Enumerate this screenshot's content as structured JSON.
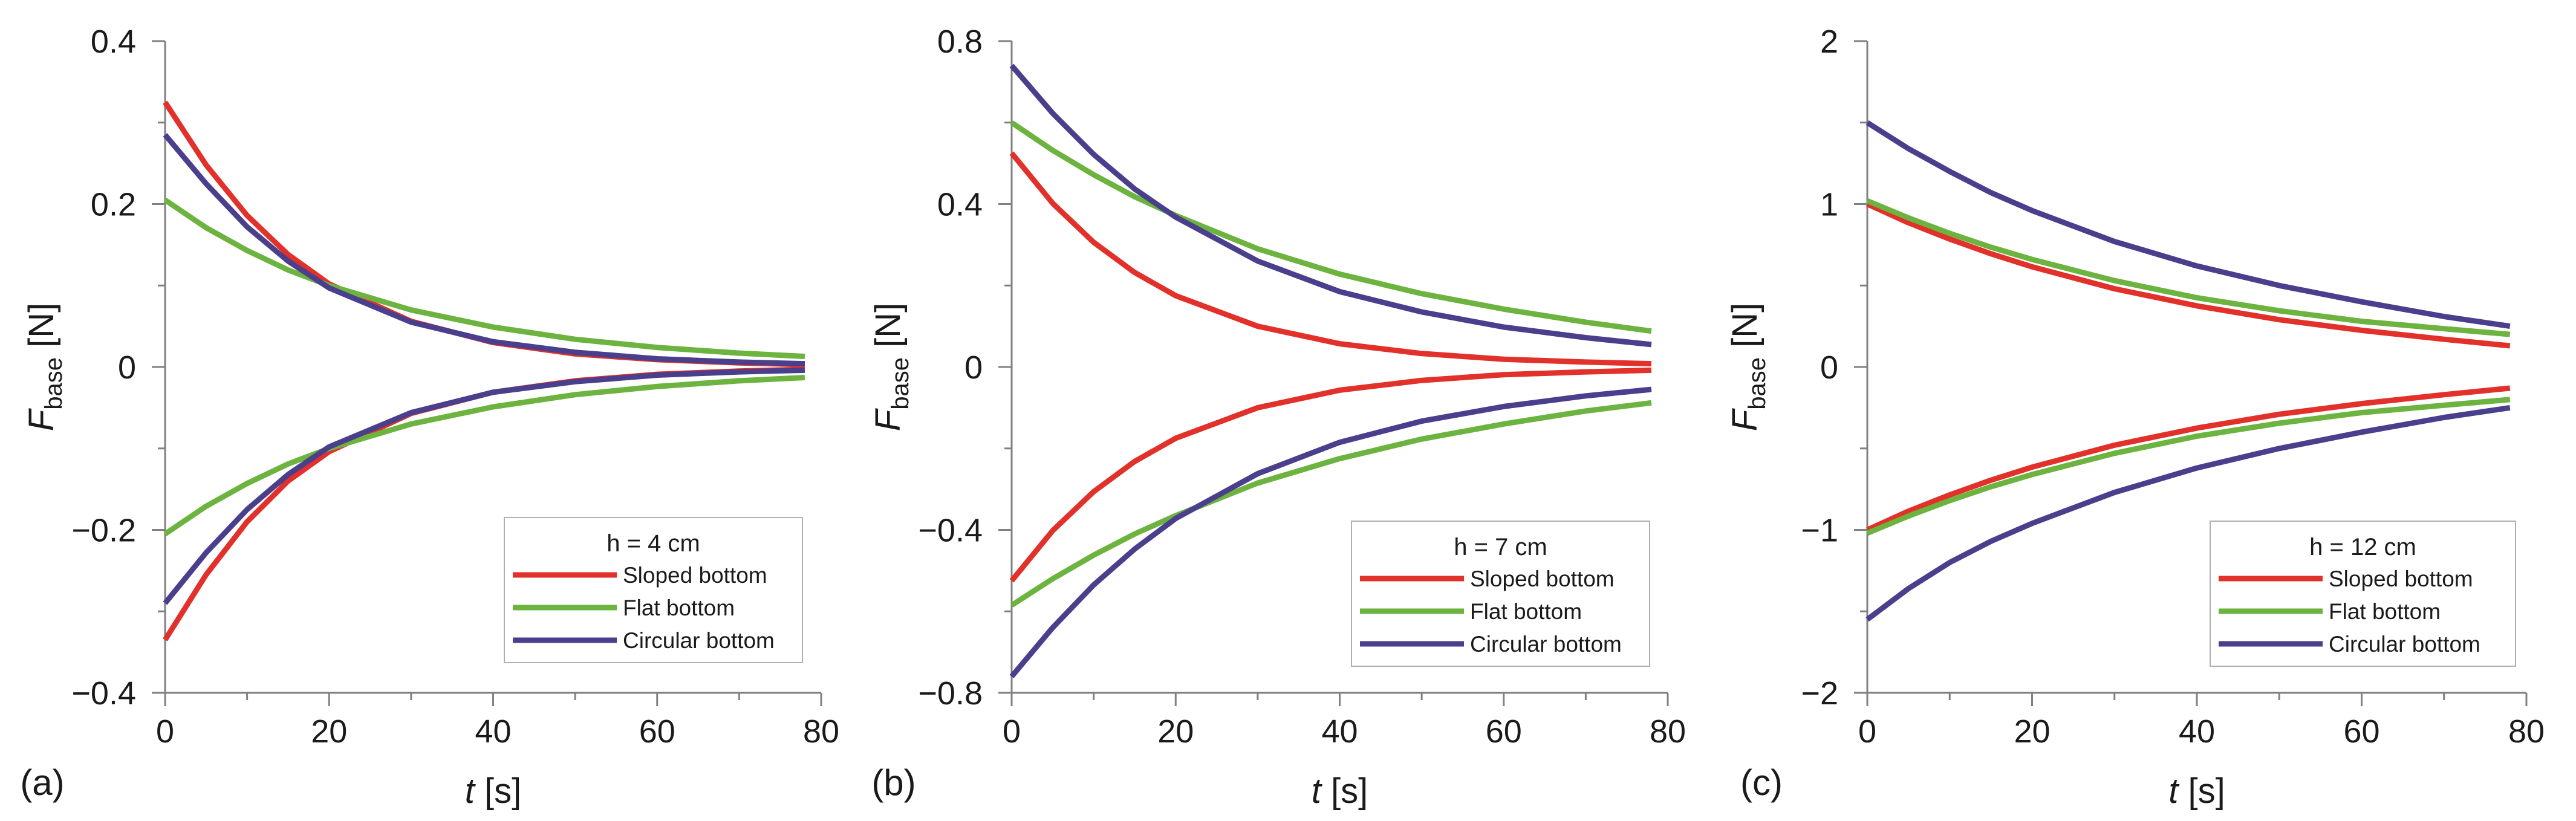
{
  "colors": {
    "sloped": "#e2302a",
    "flat": "#6cb33f",
    "circular": "#4a3f8c",
    "axis": "#808080",
    "text": "#1a1a1a"
  },
  "chart_data": [
    {
      "type": "line",
      "panel_label": "(a)",
      "legend_title": "h = 4 cm",
      "xlabel_var": "t",
      "xlabel_unit": " [s]",
      "ylabel_var": "F",
      "ylabel_sub": "base",
      "ylabel_unit": " [N]",
      "xlim": [
        0,
        80
      ],
      "ylim": [
        -0.4,
        0.4
      ],
      "xticks": [
        {
          "v": 0,
          "label": "0"
        },
        {
          "v": 20,
          "label": "20"
        },
        {
          "v": 40,
          "label": "40"
        },
        {
          "v": 60,
          "label": "60"
        },
        {
          "v": 80,
          "label": "80"
        }
      ],
      "yticks": [
        {
          "v": 0.4,
          "label": "0.4"
        },
        {
          "v": 0.2,
          "label": "0.2"
        },
        {
          "v": 0,
          "label": "0"
        },
        {
          "v": -0.2,
          "label": "−0.2"
        },
        {
          "v": -0.4,
          "label": "−0.4"
        }
      ],
      "legend_position": "bottom-right",
      "series": [
        {
          "name": "Sloped bottom",
          "color_key": "sloped",
          "x": [
            0,
            5,
            10,
            15,
            20,
            30,
            40,
            50,
            60,
            70,
            78
          ],
          "upper": [
            0.325,
            0.248,
            0.186,
            0.138,
            0.102,
            0.056,
            0.03,
            0.016,
            0.009,
            0.005,
            0.003
          ],
          "lower": [
            -0.335,
            -0.255,
            -0.19,
            -0.14,
            -0.104,
            -0.057,
            -0.031,
            -0.017,
            -0.009,
            -0.005,
            -0.003
          ]
        },
        {
          "name": "Flat bottom",
          "color_key": "flat",
          "x": [
            0,
            5,
            10,
            15,
            20,
            30,
            40,
            50,
            60,
            70,
            78
          ],
          "upper": [
            0.205,
            0.171,
            0.143,
            0.119,
            0.1,
            0.07,
            0.049,
            0.034,
            0.024,
            0.017,
            0.013
          ],
          "lower": [
            -0.205,
            -0.171,
            -0.143,
            -0.119,
            -0.1,
            -0.07,
            -0.049,
            -0.034,
            -0.024,
            -0.017,
            -0.013
          ]
        },
        {
          "name": "Circular bottom",
          "color_key": "circular",
          "x": [
            0,
            5,
            10,
            15,
            20,
            30,
            40,
            50,
            60,
            70,
            78
          ],
          "upper": [
            0.285,
            0.225,
            0.172,
            0.13,
            0.097,
            0.055,
            0.031,
            0.018,
            0.01,
            0.006,
            0.004
          ],
          "lower": [
            -0.29,
            -0.228,
            -0.175,
            -0.132,
            -0.098,
            -0.056,
            -0.031,
            -0.018,
            -0.01,
            -0.006,
            -0.004
          ]
        }
      ]
    },
    {
      "type": "line",
      "panel_label": "(b)",
      "legend_title": "h = 7 cm",
      "xlabel_var": "t",
      "xlabel_unit": " [s]",
      "ylabel_var": "F",
      "ylabel_sub": "base",
      "ylabel_unit": " [N]",
      "xlim": [
        0,
        80
      ],
      "ylim": [
        -0.8,
        0.8
      ],
      "xticks": [
        {
          "v": 0,
          "label": "0"
        },
        {
          "v": 20,
          "label": "20"
        },
        {
          "v": 40,
          "label": "40"
        },
        {
          "v": 60,
          "label": "60"
        },
        {
          "v": 80,
          "label": "80"
        }
      ],
      "yticks": [
        {
          "v": 0.8,
          "label": "0.8"
        },
        {
          "v": 0.4,
          "label": "0.4"
        },
        {
          "v": 0,
          "label": "0"
        },
        {
          "v": -0.4,
          "label": "−0.4"
        },
        {
          "v": -0.8,
          "label": "−0.8"
        }
      ],
      "legend_position": "bottom-right",
      "series": [
        {
          "name": "Sloped bottom",
          "color_key": "sloped",
          "x": [
            0,
            5,
            10,
            15,
            20,
            30,
            40,
            50,
            60,
            70,
            78
          ],
          "upper": [
            0.525,
            0.402,
            0.306,
            0.232,
            0.175,
            0.1,
            0.057,
            0.033,
            0.019,
            0.012,
            0.008
          ],
          "lower": [
            -0.525,
            -0.402,
            -0.306,
            -0.232,
            -0.175,
            -0.1,
            -0.057,
            -0.033,
            -0.019,
            -0.012,
            -0.008
          ]
        },
        {
          "name": "Flat bottom",
          "color_key": "flat",
          "x": [
            0,
            5,
            10,
            15,
            20,
            30,
            40,
            50,
            60,
            70,
            78
          ],
          "upper": [
            0.6,
            0.532,
            0.472,
            0.418,
            0.372,
            0.29,
            0.228,
            0.18,
            0.142,
            0.11,
            0.088
          ],
          "lower": [
            -0.585,
            -0.52,
            -0.462,
            -0.41,
            -0.365,
            -0.285,
            -0.225,
            -0.177,
            -0.14,
            -0.108,
            -0.088
          ]
        },
        {
          "name": "Circular bottom",
          "color_key": "circular",
          "x": [
            0,
            5,
            10,
            15,
            20,
            30,
            40,
            50,
            60,
            70,
            78
          ],
          "upper": [
            0.74,
            0.623,
            0.522,
            0.437,
            0.368,
            0.26,
            0.185,
            0.135,
            0.098,
            0.072,
            0.055
          ],
          "lower": [
            -0.76,
            -0.64,
            -0.535,
            -0.447,
            -0.372,
            -0.262,
            -0.185,
            -0.133,
            -0.097,
            -0.071,
            -0.055
          ]
        }
      ]
    },
    {
      "type": "line",
      "panel_label": "(c)",
      "legend_title": "h = 12 cm",
      "xlabel_var": "t",
      "xlabel_unit": " [s]",
      "ylabel_var": "F",
      "ylabel_sub": "base",
      "ylabel_unit": " [N]",
      "xlim": [
        0,
        80
      ],
      "ylim": [
        -2,
        2
      ],
      "xticks": [
        {
          "v": 0,
          "label": "0"
        },
        {
          "v": 20,
          "label": "20"
        },
        {
          "v": 40,
          "label": "40"
        },
        {
          "v": 60,
          "label": "60"
        },
        {
          "v": 80,
          "label": "80"
        }
      ],
      "yticks": [
        {
          "v": 2,
          "label": "2"
        },
        {
          "v": 1,
          "label": "1"
        },
        {
          "v": 0,
          "label": "0"
        },
        {
          "v": -1,
          "label": "−1"
        },
        {
          "v": -2,
          "label": "−2"
        }
      ],
      "legend_position": "bottom-right",
      "series": [
        {
          "name": "Sloped bottom",
          "color_key": "sloped",
          "x": [
            0,
            5,
            10,
            15,
            20,
            30,
            40,
            50,
            60,
            70,
            78
          ],
          "upper": [
            1.0,
            0.885,
            0.785,
            0.695,
            0.615,
            0.48,
            0.375,
            0.29,
            0.225,
            0.17,
            0.13
          ],
          "lower": [
            -1.0,
            -0.885,
            -0.785,
            -0.695,
            -0.615,
            -0.48,
            -0.375,
            -0.29,
            -0.225,
            -0.17,
            -0.13
          ]
        },
        {
          "name": "Flat bottom",
          "color_key": "flat",
          "x": [
            0,
            5,
            10,
            15,
            20,
            30,
            40,
            50,
            60,
            70,
            78
          ],
          "upper": [
            1.02,
            0.915,
            0.82,
            0.735,
            0.66,
            0.53,
            0.425,
            0.345,
            0.28,
            0.235,
            0.2
          ],
          "lower": [
            -1.02,
            -0.915,
            -0.82,
            -0.735,
            -0.66,
            -0.53,
            -0.425,
            -0.345,
            -0.28,
            -0.235,
            -0.2
          ]
        },
        {
          "name": "Circular bottom",
          "color_key": "circular",
          "x": [
            0,
            5,
            10,
            15,
            20,
            30,
            40,
            50,
            60,
            70,
            78
          ],
          "upper": [
            1.5,
            1.34,
            1.2,
            1.07,
            0.96,
            0.77,
            0.62,
            0.5,
            0.4,
            0.31,
            0.25
          ],
          "lower": [
            -1.55,
            -1.36,
            -1.2,
            -1.07,
            -0.96,
            -0.77,
            -0.62,
            -0.5,
            -0.4,
            -0.31,
            -0.25
          ]
        }
      ]
    }
  ]
}
